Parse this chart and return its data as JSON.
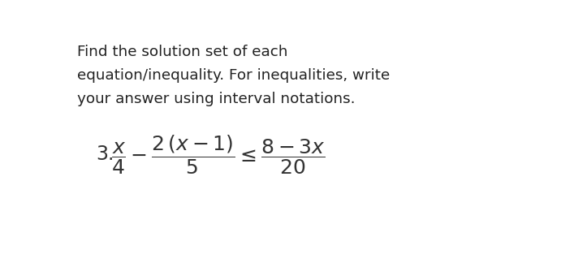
{
  "background_color": "#ffffff",
  "instruction_lines": [
    "Find the solution set of each",
    "equation/inequality. For inequalities, write",
    "your answer using interval notations."
  ],
  "instruction_color": "#222222",
  "instruction_fontsize": 13.2,
  "text_color": "#333333",
  "math_fontsize": 18,
  "item_fontsize": 15
}
